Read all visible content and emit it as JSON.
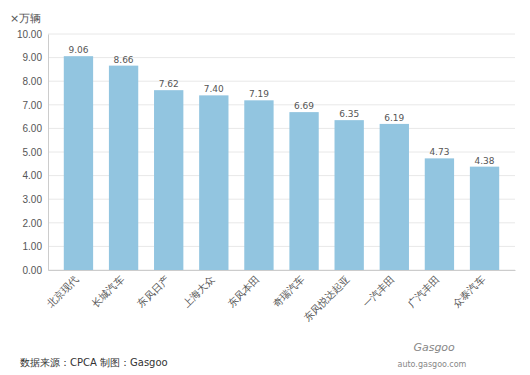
{
  "chart_data": {
    "type": "bar",
    "categories": [
      "北京现代",
      "长城汽车",
      "东风日产",
      "上海大众",
      "东风本田",
      "奇瑞汽车",
      "东风悦达起亚",
      "一汽丰田",
      "广汽丰田",
      "众泰汽车"
    ],
    "values": [
      9.06,
      8.66,
      7.62,
      7.4,
      7.19,
      6.69,
      6.35,
      6.19,
      4.73,
      4.38
    ],
    "value_labels": [
      "9.06",
      "8.66",
      "7.62",
      "7.40",
      "7.19",
      "6.69",
      "6.35",
      "6.19",
      "4.73",
      "4.38"
    ],
    "data_labels": true,
    "color": "#92C5E0",
    "y_label": "×万辆",
    "ylim": [
      0,
      10.0
    ],
    "yticks": [
      {
        "value": 0,
        "label": "0.00"
      },
      {
        "value": 1,
        "label": "1.00"
      },
      {
        "value": 2,
        "label": "2.00"
      },
      {
        "value": 3,
        "label": "3.00"
      },
      {
        "value": 4,
        "label": "4.00"
      },
      {
        "value": 5,
        "label": "5.00"
      },
      {
        "value": 6,
        "label": "6.00"
      },
      {
        "value": 7,
        "label": "7.00"
      },
      {
        "value": 8,
        "label": "8.00"
      },
      {
        "value": 9,
        "label": "9.00"
      },
      {
        "value": 10,
        "label": "10.00"
      }
    ],
    "grid": true,
    "annotations": [
      "数据来源：CPCA 制图：Gasgoo",
      "Gasgoo",
      "auto.gasgoo.com"
    ]
  }
}
